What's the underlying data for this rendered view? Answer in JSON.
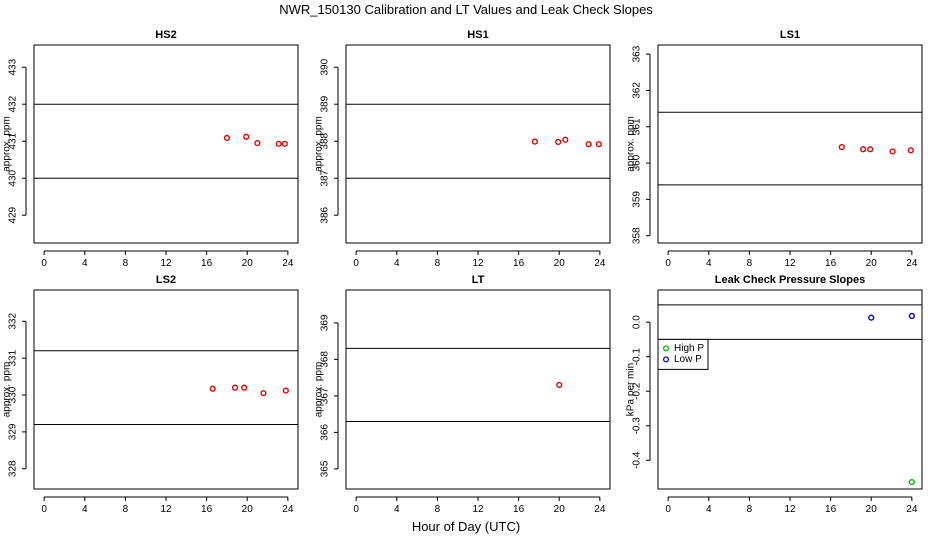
{
  "figure": {
    "title": "NWR_150130  Calibration and LT Values and Leak Check Slopes",
    "xlabel": "Hour of Day (UTC)"
  },
  "chart_data": [
    {
      "type": "scatter",
      "title": "HS2",
      "ylabel": "approx. ppm",
      "xlim": [
        -1,
        25
      ],
      "ylim": [
        428.25,
        433.6
      ],
      "xticks": [
        0,
        4,
        8,
        12,
        16,
        20,
        24
      ],
      "yticks": [
        429,
        430,
        431,
        432,
        433
      ],
      "hlines": [
        432,
        430
      ],
      "series": [
        {
          "color": "#dd0000",
          "marker": "circle",
          "x": [
            18.0,
            19.9,
            21.0,
            23.1,
            23.7
          ],
          "y": [
            431.09,
            431.12,
            430.95,
            430.93,
            430.93
          ]
        }
      ]
    },
    {
      "type": "scatter",
      "title": "HS1",
      "ylabel": "approx. ppm",
      "xlim": [
        -1,
        25
      ],
      "ylim": [
        385.25,
        390.6
      ],
      "xticks": [
        0,
        4,
        8,
        12,
        16,
        20,
        24
      ],
      "yticks": [
        386,
        387,
        388,
        389,
        390
      ],
      "hlines": [
        389,
        387
      ],
      "series": [
        {
          "color": "#dd0000",
          "marker": "circle",
          "x": [
            17.6,
            19.9,
            20.6,
            22.9,
            23.9
          ],
          "y": [
            387.99,
            387.98,
            388.04,
            387.92,
            387.92
          ]
        }
      ]
    },
    {
      "type": "scatter",
      "title": "LS1",
      "ylabel": "approx. ppm",
      "xlim": [
        -1,
        25
      ],
      "ylim": [
        357.8,
        363.25
      ],
      "xticks": [
        0,
        4,
        8,
        12,
        16,
        20,
        24
      ],
      "yticks": [
        358,
        359,
        360,
        361,
        362,
        363
      ],
      "hlines": [
        361.4,
        359.4
      ],
      "series": [
        {
          "color": "#dd0000",
          "marker": "circle",
          "x": [
            17.1,
            19.2,
            19.9,
            22.1,
            23.9
          ],
          "y": [
            360.44,
            360.38,
            360.38,
            360.32,
            360.35
          ]
        }
      ]
    },
    {
      "type": "scatter",
      "title": "LS2",
      "ylabel": "approx. ppm",
      "xlim": [
        -1,
        25
      ],
      "ylim": [
        327.45,
        332.85
      ],
      "xticks": [
        0,
        4,
        8,
        12,
        16,
        20,
        24
      ],
      "yticks": [
        328,
        329,
        330,
        331,
        332
      ],
      "hlines": [
        331.2,
        329.2
      ],
      "series": [
        {
          "color": "#dd0000",
          "marker": "circle",
          "x": [
            16.6,
            18.8,
            19.7,
            21.6,
            23.8
          ],
          "y": [
            330.17,
            330.2,
            330.2,
            330.05,
            330.12
          ]
        }
      ]
    },
    {
      "type": "scatter",
      "title": "LT",
      "ylabel": "approx. ppm",
      "xlim": [
        -1,
        25
      ],
      "ylim": [
        364.45,
        369.9
      ],
      "xticks": [
        0,
        4,
        8,
        12,
        16,
        20,
        24
      ],
      "yticks": [
        365,
        366,
        367,
        368,
        369
      ],
      "hlines": [
        368.3,
        366.3
      ],
      "series": [
        {
          "color": "#dd0000",
          "marker": "circle",
          "x": [
            20.0
          ],
          "y": [
            367.3
          ]
        }
      ]
    },
    {
      "type": "scatter",
      "title": "Leak Check Pressure Slopes",
      "ylabel": "kPa per min",
      "xlim": [
        -1,
        25
      ],
      "ylim": [
        -0.483,
        0.093
      ],
      "xticks": [
        0,
        4,
        8,
        12,
        16,
        20,
        24
      ],
      "yticks": [
        0.0,
        -0.1,
        -0.2,
        -0.3,
        -0.4
      ],
      "ytick_labels": [
        "0.0",
        "-0.1",
        "-0.2",
        "-0.3",
        "-0.4"
      ],
      "hlines": [
        0.05,
        -0.05
      ],
      "legend": {
        "position": "top-left",
        "entries": [
          "High P",
          "Low P"
        ]
      },
      "series": [
        {
          "name": "High P",
          "color": "#00bb00",
          "marker": "circle",
          "x": [
            24.0
          ],
          "y": [
            -0.463
          ]
        },
        {
          "name": "Low P",
          "color": "#0000dd",
          "marker": "circle",
          "x": [
            20.0,
            24.0
          ],
          "y": [
            0.013,
            0.018
          ]
        }
      ]
    }
  ]
}
